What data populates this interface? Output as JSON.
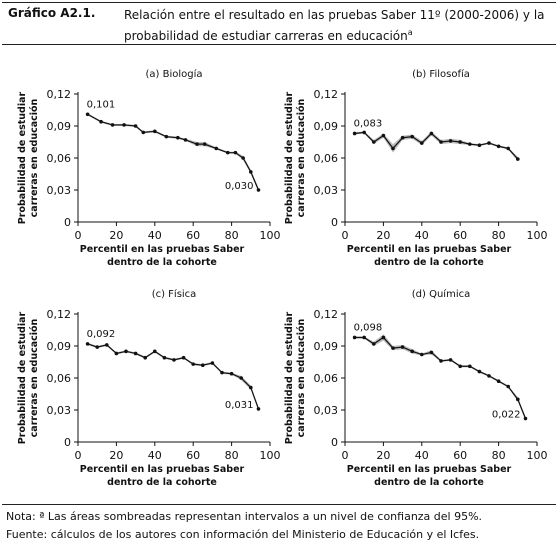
{
  "header": {
    "label": "Gráfico A2.1.",
    "title_line1": "Relación entre el resultado en las pruebas Saber 11º (2000-2006) y la",
    "title_line2": "probabilidad de estudiar carreras en educación",
    "title_sup": "a"
  },
  "footer": {
    "note": "Nota: ª Las áreas sombreadas representan intervalos a un nivel de confianza del 95%.",
    "source": "Fuente: cálculos de los autores con información del Ministerio de Educación y el Icfes."
  },
  "chart_data": [
    {
      "type": "line",
      "title": "(a) Biología",
      "xlabel": "Percentil en las pruebas Saber",
      "xlabel2": "dentro de la cohorte",
      "ylabel": "Probabilidad de estudiar",
      "ylabel2": "carreras en educación",
      "xlim": [
        0,
        100
      ],
      "ylim": [
        0,
        0.12
      ],
      "xticks": [
        0,
        20,
        40,
        60,
        80,
        100
      ],
      "yticks": [
        0,
        0.03,
        0.06,
        0.09,
        0.12
      ],
      "ytick_labels": [
        "0",
        "0,03",
        "0,06",
        "0,09",
        "0,12"
      ],
      "x": [
        5,
        12,
        18,
        24,
        30,
        34,
        40,
        46,
        52,
        56,
        62,
        66,
        72,
        78,
        82,
        86,
        90,
        94
      ],
      "y": [
        0.101,
        0.094,
        0.091,
        0.091,
        0.09,
        0.084,
        0.085,
        0.08,
        0.079,
        0.077,
        0.073,
        0.073,
        0.069,
        0.065,
        0.065,
        0.06,
        0.047,
        0.03
      ],
      "ci_width": [
        0.001,
        0.001,
        0.001,
        0.001,
        0.001,
        0.001,
        0.001,
        0.001,
        0.001,
        0.001,
        0.002,
        0.002,
        0.001,
        0.001,
        0.001,
        0.002,
        0.002,
        0.002
      ],
      "annotations": [
        {
          "text": "0,101",
          "x": 5,
          "y": 0.101,
          "anchor": "above"
        },
        {
          "text": "0,030",
          "x": 94,
          "y": 0.03,
          "anchor": "left"
        }
      ]
    },
    {
      "type": "line",
      "title": "(b) Filosofía",
      "xlabel": "Percentil en las pruebas Saber",
      "xlabel2": "dentro de la cohorte",
      "ylabel": "Probabilidad de estudiar",
      "ylabel2": "carreras en educación",
      "xlim": [
        0,
        100
      ],
      "ylim": [
        0,
        0.12
      ],
      "xticks": [
        0,
        20,
        40,
        60,
        80,
        100
      ],
      "yticks": [
        0,
        0.03,
        0.06,
        0.09,
        0.12
      ],
      "ytick_labels": [
        "0",
        "0,03",
        "0,06",
        "0,09",
        "0,12"
      ],
      "x": [
        5,
        10,
        15,
        20,
        25,
        30,
        35,
        40,
        45,
        50,
        55,
        60,
        65,
        70,
        75,
        80,
        85,
        90
      ],
      "y": [
        0.083,
        0.084,
        0.075,
        0.081,
        0.069,
        0.079,
        0.08,
        0.074,
        0.083,
        0.075,
        0.076,
        0.075,
        0.073,
        0.072,
        0.074,
        0.071,
        0.069,
        0.059
      ],
      "ci_width": [
        0.001,
        0.001,
        0.002,
        0.002,
        0.004,
        0.002,
        0.002,
        0.002,
        0.002,
        0.002,
        0.002,
        0.002,
        0.001,
        0.001,
        0.001,
        0.001,
        0.001,
        0.002
      ],
      "annotations": [
        {
          "text": "0,083",
          "x": 5,
          "y": 0.083,
          "anchor": "above"
        }
      ]
    },
    {
      "type": "line",
      "title": "(c) Física",
      "xlabel": "Percentil en las pruebas Saber",
      "xlabel2": "dentro de la cohorte",
      "ylabel": "Probabilidad de estudiar",
      "ylabel2": "carreras en educación",
      "xlim": [
        0,
        100
      ],
      "ylim": [
        0,
        0.12
      ],
      "xticks": [
        0,
        20,
        40,
        60,
        80,
        100
      ],
      "yticks": [
        0,
        0.03,
        0.06,
        0.09,
        0.12
      ],
      "ytick_labels": [
        "0",
        "0,03",
        "0,06",
        "0,09",
        "0,12"
      ],
      "x": [
        5,
        10,
        15,
        20,
        25,
        30,
        35,
        40,
        45,
        50,
        55,
        60,
        65,
        70,
        75,
        80,
        85,
        90,
        94
      ],
      "y": [
        0.092,
        0.089,
        0.091,
        0.083,
        0.085,
        0.083,
        0.079,
        0.085,
        0.079,
        0.077,
        0.079,
        0.073,
        0.072,
        0.074,
        0.065,
        0.064,
        0.06,
        0.051,
        0.031
      ],
      "ci_width": [
        0.001,
        0.001,
        0.001,
        0.001,
        0.001,
        0.001,
        0.001,
        0.001,
        0.001,
        0.001,
        0.001,
        0.001,
        0.001,
        0.001,
        0.001,
        0.001,
        0.002,
        0.002,
        0.002
      ],
      "annotations": [
        {
          "text": "0,092",
          "x": 5,
          "y": 0.092,
          "anchor": "above"
        },
        {
          "text": "0,031",
          "x": 94,
          "y": 0.031,
          "anchor": "left"
        }
      ]
    },
    {
      "type": "line",
      "title": "(d) Química",
      "xlabel": "Percentil en las pruebas Saber",
      "xlabel2": "dentro de la cohorte",
      "ylabel": "Probabilidad de estudiar",
      "ylabel2": "carreras en educación",
      "xlim": [
        0,
        100
      ],
      "ylim": [
        0,
        0.12
      ],
      "xticks": [
        0,
        20,
        40,
        60,
        80,
        100
      ],
      "yticks": [
        0,
        0.03,
        0.06,
        0.09,
        0.12
      ],
      "ytick_labels": [
        "0",
        "0,03",
        "0,06",
        "0,09",
        "0,12"
      ],
      "x": [
        5,
        10,
        15,
        20,
        25,
        30,
        35,
        40,
        45,
        50,
        55,
        60,
        65,
        70,
        75,
        80,
        85,
        90,
        94
      ],
      "y": [
        0.098,
        0.098,
        0.092,
        0.098,
        0.088,
        0.089,
        0.085,
        0.082,
        0.084,
        0.076,
        0.077,
        0.071,
        0.071,
        0.066,
        0.062,
        0.057,
        0.052,
        0.04,
        0.022
      ],
      "ci_width": [
        0.001,
        0.001,
        0.002,
        0.003,
        0.002,
        0.002,
        0.002,
        0.001,
        0.002,
        0.001,
        0.001,
        0.001,
        0.001,
        0.001,
        0.001,
        0.001,
        0.001,
        0.002,
        0.002
      ],
      "annotations": [
        {
          "text": "0,098",
          "x": 5,
          "y": 0.098,
          "anchor": "above"
        },
        {
          "text": "0,022",
          "x": 94,
          "y": 0.022,
          "anchor": "left"
        }
      ]
    }
  ]
}
